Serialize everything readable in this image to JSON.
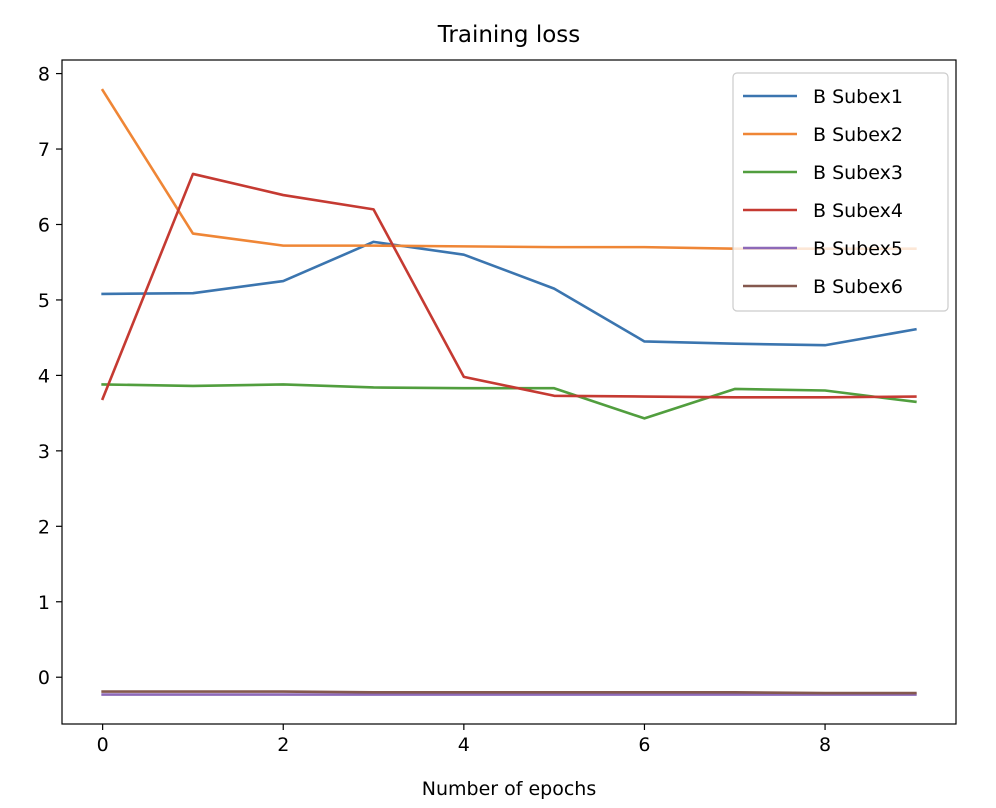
{
  "chart_data": {
    "type": "line",
    "title": "Training loss",
    "xlabel": "Number of epochs",
    "ylabel": "",
    "x": [
      0,
      1,
      2,
      3,
      4,
      5,
      6,
      7,
      8,
      9
    ],
    "xlim": [
      -0.45,
      9.45
    ],
    "ylim": [
      -0.62,
      8.18
    ],
    "xticks": [
      0,
      2,
      4,
      6,
      8
    ],
    "yticks": [
      0,
      1,
      2,
      3,
      4,
      5,
      6,
      7,
      8
    ],
    "grid": false,
    "legend_position": "top-right",
    "series": [
      {
        "name": "B Subex1",
        "color": "#3b75af",
        "values": [
          5.08,
          5.09,
          5.25,
          5.77,
          5.6,
          5.15,
          4.45,
          4.42,
          4.4,
          4.61
        ]
      },
      {
        "name": "B Subex2",
        "color": "#ef8636",
        "values": [
          7.78,
          5.88,
          5.72,
          5.72,
          5.71,
          5.7,
          5.7,
          5.68,
          5.68,
          5.68
        ]
      },
      {
        "name": "B Subex3",
        "color": "#519e3e",
        "values": [
          3.88,
          3.86,
          3.88,
          3.84,
          3.83,
          3.83,
          3.43,
          3.82,
          3.8,
          3.65
        ]
      },
      {
        "name": "B Subex4",
        "color": "#c53a32",
        "values": [
          3.69,
          6.67,
          6.39,
          6.2,
          3.98,
          3.73,
          3.72,
          3.71,
          3.71,
          3.72
        ]
      },
      {
        "name": "B Subex5",
        "color": "#8d69b8",
        "values": [
          -0.23,
          -0.23,
          -0.23,
          -0.23,
          -0.23,
          -0.23,
          -0.23,
          -0.23,
          -0.23,
          -0.23
        ]
      },
      {
        "name": "B Subex6",
        "color": "#84584e",
        "values": [
          -0.19,
          -0.19,
          -0.19,
          -0.2,
          -0.2,
          -0.2,
          -0.2,
          -0.2,
          -0.21,
          -0.21
        ]
      }
    ]
  }
}
